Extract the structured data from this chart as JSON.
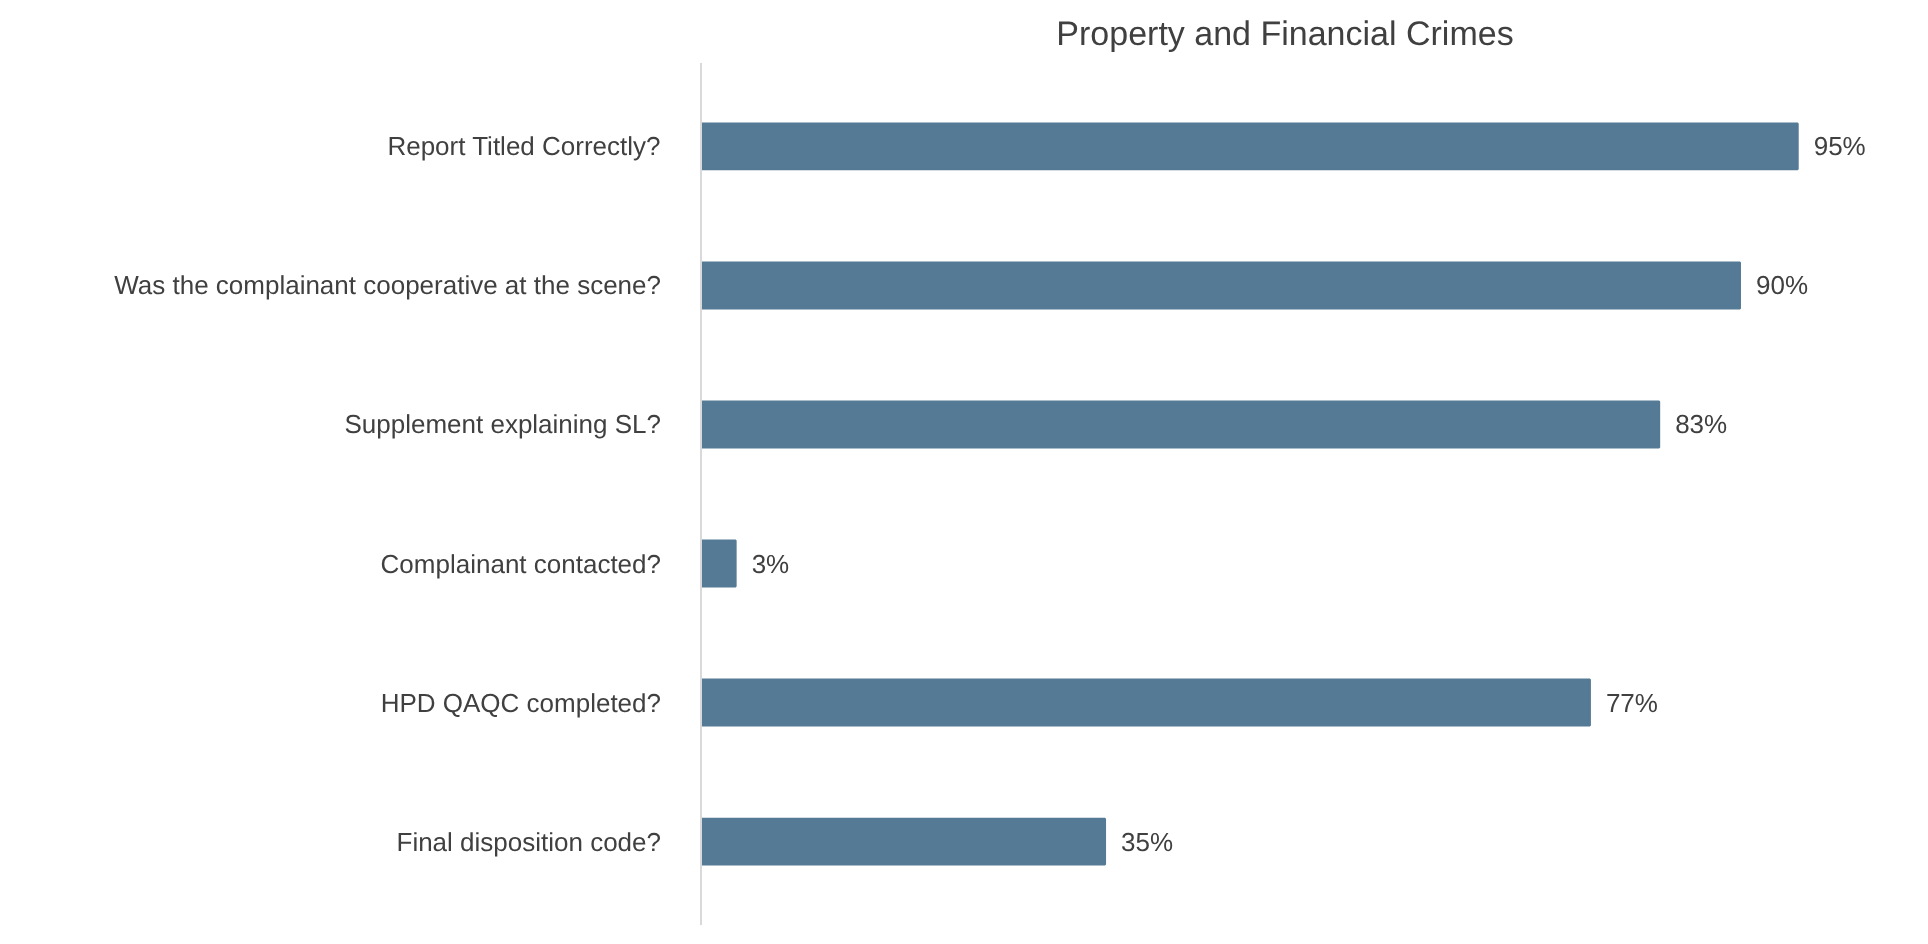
{
  "chart_data": {
    "type": "bar",
    "orientation": "horizontal",
    "title": "Property and Financial Crimes",
    "categories": [
      "Report Titled Correctly?",
      "Was the complainant cooperative at the scene?",
      "Supplement explaining SL?",
      "Complainant contacted?",
      "HPD QAQC completed?",
      "Final disposition code?"
    ],
    "values": [
      95,
      90,
      83,
      3,
      77,
      35
    ],
    "value_labels": [
      "95%",
      "90%",
      "83%",
      "3%",
      "77%",
      "35%"
    ],
    "color": "#557a95"
  }
}
